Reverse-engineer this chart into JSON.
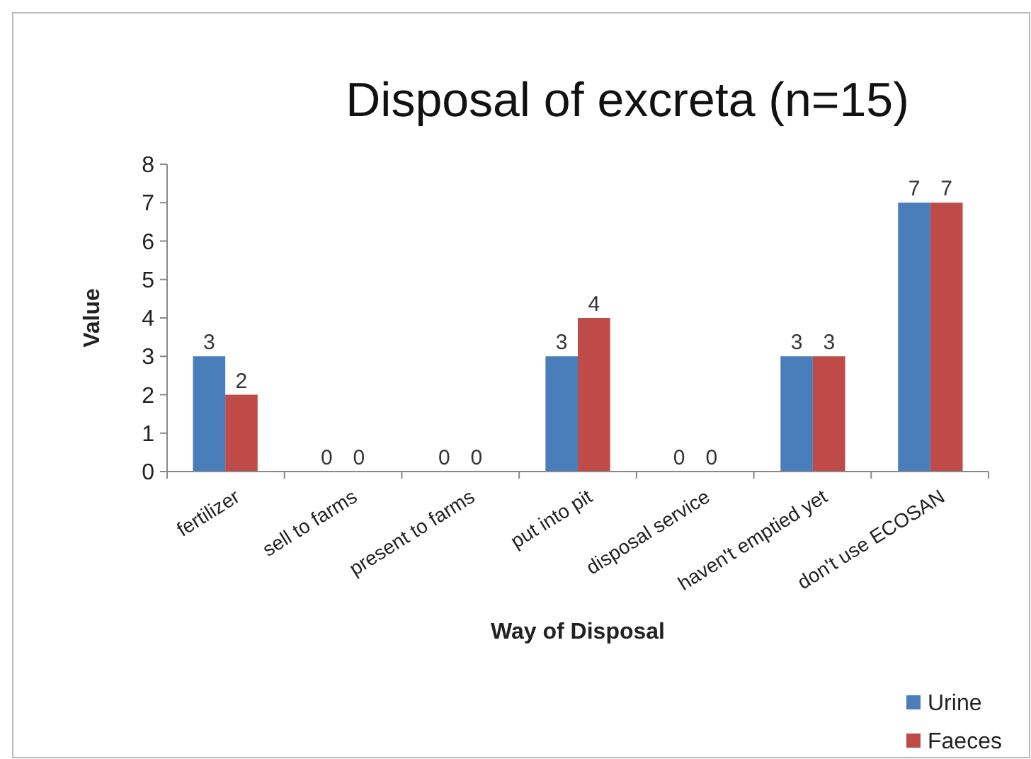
{
  "chart_data": {
    "type": "bar",
    "title": "Disposal of excreta (n=15)",
    "xlabel": "Way of Disposal",
    "ylabel": "Value",
    "categories": [
      "fertilizer",
      "sell to farms",
      "present to farms",
      "put into pit",
      "disposal service",
      "haven't emptied yet",
      "don't use ECOSAN"
    ],
    "series": [
      {
        "name": "Urine",
        "color": "#4a7ebb",
        "values": [
          3,
          0,
          0,
          3,
          0,
          3,
          7
        ]
      },
      {
        "name": "Faeces",
        "color": "#be4b48",
        "values": [
          2,
          0,
          0,
          4,
          0,
          3,
          7
        ]
      }
    ],
    "ylim": [
      0,
      8
    ],
    "yticks": [
      0,
      1,
      2,
      3,
      4,
      5,
      6,
      7,
      8
    ],
    "grid": false,
    "legend": "bottom right",
    "data_labels": true
  }
}
